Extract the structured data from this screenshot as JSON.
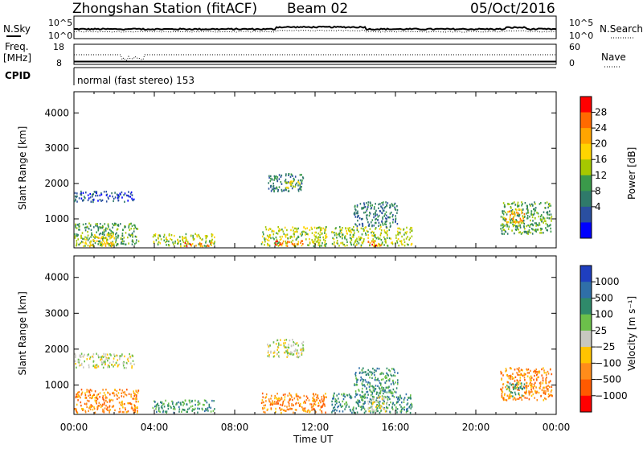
{
  "header": {
    "station": "Zhongshan Station (fitACF)",
    "beam": "Beam 02",
    "date": "05/Oct/2016"
  },
  "noise_panel": {
    "left_label": "N.Sky",
    "right_label": "N.Search",
    "left_ticks": [
      "10^5",
      "10^0"
    ],
    "right_ticks": [
      "10^5",
      "10^0"
    ]
  },
  "freq_panel": {
    "left_label_1": "Freq.",
    "left_label_2": "[MHz]",
    "right_label": "Nave",
    "left_ticks": [
      "18",
      "8"
    ],
    "right_ticks": [
      "60",
      "0"
    ]
  },
  "cpid": {
    "label": "CPID",
    "text": "normal (fast stereo) 153"
  },
  "chart_data": [
    {
      "type": "heatmap",
      "name_shown": "Power",
      "ylabel": "Slant Range [km]",
      "colorbar_label": "Power [dB]",
      "ylim": [
        180,
        4600
      ],
      "xlim": [
        0,
        24
      ],
      "y_ticks": [
        1000,
        2000,
        3000,
        4000
      ],
      "colorbar_ticks": [
        "28",
        "24",
        "20",
        "16",
        "12",
        "8",
        "4"
      ],
      "colorbar_colors": [
        "#ff0000",
        "#ff6a00",
        "#ffa500",
        "#ffd400",
        "#a6c800",
        "#3a9a4a",
        "#2f7a6a",
        "#2a4fa0",
        "#0000ff"
      ],
      "regions": [
        {
          "x": [
            0.0,
            3.2
          ],
          "y": [
            250,
            900
          ],
          "level": 3
        },
        {
          "x": [
            0.3,
            2.0
          ],
          "y": [
            250,
            600
          ],
          "level": 5
        },
        {
          "x": [
            0.0,
            3.0
          ],
          "y": [
            1500,
            1800
          ],
          "level": 1
        },
        {
          "x": [
            3.9,
            7.0
          ],
          "y": [
            250,
            600
          ],
          "level": 4
        },
        {
          "x": [
            5.5,
            6.8
          ],
          "y": [
            250,
            350
          ],
          "level": 7
        },
        {
          "x": [
            9.3,
            12.6
          ],
          "y": [
            250,
            800
          ],
          "level": 4
        },
        {
          "x": [
            10.0,
            11.4
          ],
          "y": [
            250,
            400
          ],
          "level": 7
        },
        {
          "x": [
            9.6,
            11.4
          ],
          "y": [
            1800,
            2300
          ],
          "level": 2
        },
        {
          "x": [
            10.5,
            11.3
          ],
          "y": [
            1900,
            2100
          ],
          "level": 5
        },
        {
          "x": [
            12.8,
            16.8
          ],
          "y": [
            250,
            800
          ],
          "level": 4
        },
        {
          "x": [
            14.6,
            15.3
          ],
          "y": [
            250,
            400
          ],
          "level": 7
        },
        {
          "x": [
            13.9,
            16.1
          ],
          "y": [
            800,
            1500
          ],
          "level": 2
        },
        {
          "x": [
            21.2,
            23.8
          ],
          "y": [
            600,
            1500
          ],
          "level": 3
        },
        {
          "x": [
            21.4,
            22.4
          ],
          "y": [
            900,
            1300
          ],
          "level": 6
        }
      ]
    },
    {
      "type": "heatmap",
      "name_shown": "Velocity",
      "ylabel": "Slant Range [km]",
      "xlabel": "Time UT",
      "colorbar_label": "Velocity [m s⁻¹]",
      "ylim": [
        180,
        4600
      ],
      "xlim": [
        0,
        24
      ],
      "y_ticks": [
        1000,
        2000,
        3000,
        4000
      ],
      "x_ticks": [
        "00:00",
        "04:00",
        "08:00",
        "12:00",
        "16:00",
        "20:00",
        "00:00"
      ],
      "colorbar_ticks": [
        "1000",
        "500",
        "100",
        "25",
        "−25",
        "−100",
        "−500",
        "−1000"
      ],
      "colorbar_colors": [
        "#1f3fbf",
        "#2f6fa8",
        "#2f8a6a",
        "#6cc04a",
        "#c8c8c0",
        "#ffc400",
        "#ff8c1a",
        "#ff5a00",
        "#ff0000"
      ],
      "regions": [
        {
          "x": [
            0.0,
            3.2
          ],
          "y": [
            250,
            900
          ],
          "level": 2
        },
        {
          "x": [
            0.0,
            3.0
          ],
          "y": [
            1500,
            1900
          ],
          "level": 4
        },
        {
          "x": [
            3.9,
            7.0
          ],
          "y": [
            250,
            600
          ],
          "level": 6
        },
        {
          "x": [
            9.3,
            12.6
          ],
          "y": [
            250,
            800
          ],
          "level": 2
        },
        {
          "x": [
            9.6,
            11.4
          ],
          "y": [
            1800,
            2300
          ],
          "level": 4
        },
        {
          "x": [
            12.8,
            16.8
          ],
          "y": [
            250,
            800
          ],
          "level": 6
        },
        {
          "x": [
            14.6,
            15.6
          ],
          "y": [
            250,
            700
          ],
          "level": 4
        },
        {
          "x": [
            13.9,
            16.1
          ],
          "y": [
            800,
            1500
          ],
          "level": 6
        },
        {
          "x": [
            21.2,
            23.8
          ],
          "y": [
            600,
            1500
          ],
          "level": 2
        },
        {
          "x": [
            21.5,
            22.4
          ],
          "y": [
            700,
            1100
          ],
          "level": 6
        }
      ]
    }
  ],
  "time_axis": {
    "xlabel": "Time UT",
    "x_ticks": [
      "00:00",
      "04:00",
      "08:00",
      "12:00",
      "16:00",
      "20:00",
      "00:00"
    ]
  }
}
